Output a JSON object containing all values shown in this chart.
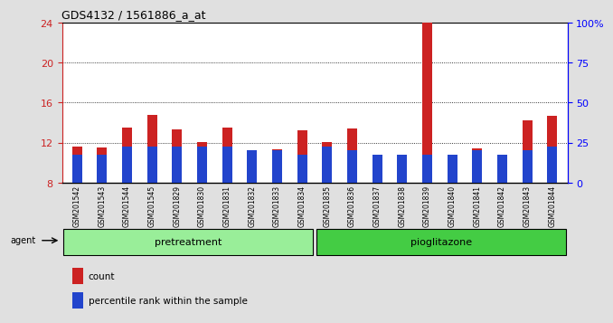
{
  "title": "GDS4132 / 1561886_a_at",
  "samples": [
    "GSM201542",
    "GSM201543",
    "GSM201544",
    "GSM201545",
    "GSM201829",
    "GSM201830",
    "GSM201831",
    "GSM201832",
    "GSM201833",
    "GSM201834",
    "GSM201835",
    "GSM201836",
    "GSM201837",
    "GSM201838",
    "GSM201839",
    "GSM201840",
    "GSM201841",
    "GSM201842",
    "GSM201843",
    "GSM201844"
  ],
  "count_values": [
    11.6,
    11.5,
    13.5,
    14.8,
    13.3,
    12.1,
    13.5,
    11.1,
    11.3,
    13.2,
    12.1,
    13.4,
    9.3,
    10.3,
    24.2,
    10.5,
    11.4,
    10.2,
    14.2,
    14.7
  ],
  "percentile_values": [
    2.8,
    2.8,
    3.6,
    3.6,
    3.6,
    3.6,
    3.6,
    3.2,
    3.2,
    2.8,
    3.6,
    3.2,
    2.8,
    2.8,
    2.8,
    2.8,
    3.2,
    2.8,
    3.2,
    3.6
  ],
  "bar_bottom": 8.0,
  "count_color": "#cc2222",
  "percentile_color": "#2244cc",
  "ylim_left": [
    8,
    24
  ],
  "ylim_right": [
    0,
    100
  ],
  "yticks_left": [
    8,
    12,
    16,
    20,
    24
  ],
  "yticks_right": [
    0,
    25,
    50,
    75,
    100
  ],
  "ytick_labels_right": [
    "0",
    "25",
    "50",
    "75",
    "100%"
  ],
  "pretreatment_samples": 10,
  "pioglitazone_samples": 10,
  "group_labels": [
    "pretreatment",
    "pioglitazone"
  ],
  "group_colors": [
    "#99ee99",
    "#44cc44"
  ],
  "agent_label": "agent",
  "legend_count": "count",
  "legend_percentile": "percentile rank within the sample",
  "bg_color": "#e0e0e0",
  "plot_bg_color": "#ffffff",
  "grid_color": "#000000",
  "title_color": "#000000",
  "bar_width": 0.4
}
